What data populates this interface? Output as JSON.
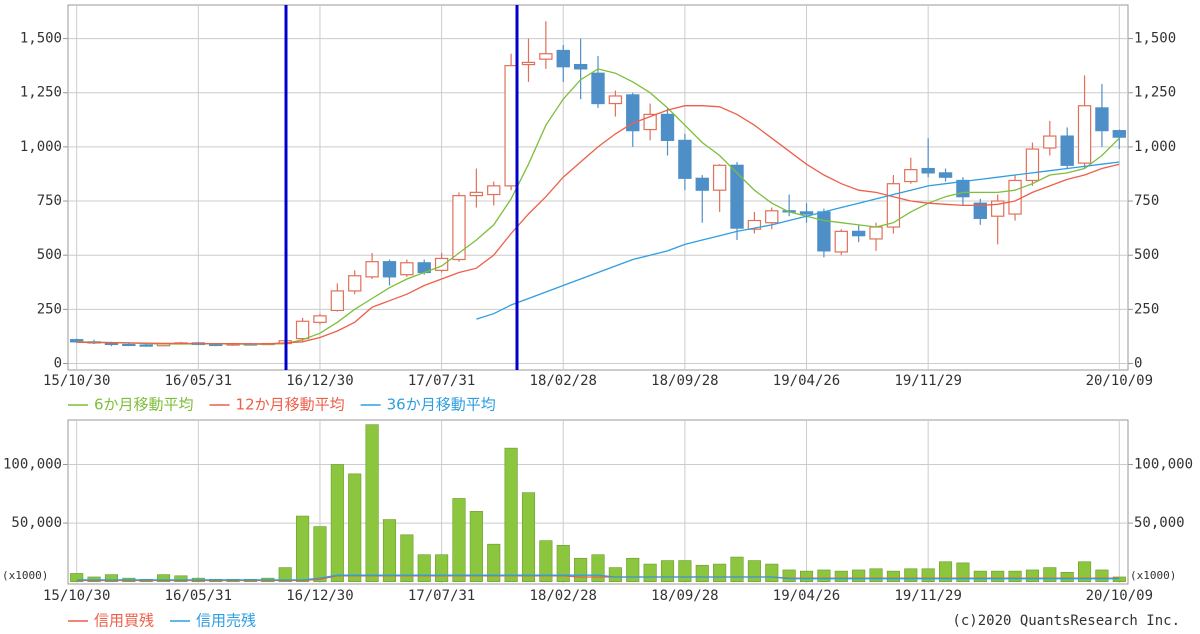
{
  "chart_data": [
    {
      "type": "candlestick",
      "categories": [
        "15/10/30",
        null,
        null,
        null,
        null,
        null,
        null,
        "16/05/31",
        null,
        null,
        null,
        null,
        null,
        null,
        "16/12/30",
        null,
        null,
        null,
        null,
        null,
        null,
        "17/07/31",
        null,
        null,
        null,
        null,
        null,
        null,
        "18/02/28",
        null,
        null,
        null,
        null,
        null,
        null,
        "18/09/28",
        null,
        null,
        null,
        null,
        null,
        null,
        "19/04/26",
        null,
        null,
        null,
        null,
        null,
        null,
        "19/11/29",
        null,
        null,
        null,
        null,
        null,
        null,
        null,
        null,
        null,
        null,
        "20/10/09"
      ],
      "open": [
        110,
        100,
        95,
        88,
        85,
        82,
        92,
        95,
        88,
        85,
        90,
        88,
        92,
        115,
        190,
        245,
        335,
        400,
        470,
        410,
        465,
        430,
        480,
        775,
        780,
        820,
        1380,
        1405,
        1445,
        1380,
        1340,
        1200,
        1240,
        1080,
        1150,
        1030,
        855,
        800,
        915,
        620,
        650,
        705,
        700,
        700,
        515,
        610,
        575,
        630,
        840,
        900,
        880,
        845,
        740,
        680,
        690,
        845,
        995,
        1050,
        925,
        1180,
        1075
      ],
      "high": [
        115,
        110,
        100,
        95,
        92,
        95,
        100,
        100,
        95,
        95,
        95,
        95,
        110,
        210,
        230,
        370,
        430,
        510,
        480,
        480,
        480,
        510,
        790,
        900,
        840,
        1430,
        1500,
        1580,
        1470,
        1500,
        1420,
        1260,
        1250,
        1200,
        1180,
        1060,
        870,
        920,
        930,
        700,
        720,
        780,
        740,
        715,
        620,
        640,
        650,
        870,
        950,
        1040,
        900,
        860,
        760,
        780,
        870,
        1020,
        1120,
        1090,
        1330,
        1290,
        1080
      ],
      "low": [
        95,
        90,
        80,
        80,
        78,
        80,
        88,
        85,
        80,
        82,
        85,
        85,
        85,
        100,
        180,
        240,
        320,
        390,
        360,
        400,
        410,
        420,
        470,
        720,
        730,
        800,
        1300,
        1360,
        1300,
        1220,
        1180,
        1140,
        1000,
        1030,
        960,
        800,
        650,
        700,
        570,
        600,
        620,
        680,
        650,
        490,
        500,
        560,
        520,
        600,
        830,
        860,
        840,
        730,
        640,
        550,
        660,
        820,
        960,
        900,
        900,
        1000,
        990
      ],
      "close": [
        100,
        95,
        88,
        85,
        82,
        92,
        95,
        88,
        85,
        90,
        88,
        92,
        105,
        195,
        220,
        335,
        405,
        470,
        400,
        465,
        420,
        485,
        775,
        790,
        820,
        1375,
        1390,
        1430,
        1370,
        1360,
        1200,
        1235,
        1075,
        1150,
        1030,
        855,
        800,
        915,
        625,
        660,
        705,
        700,
        690,
        520,
        610,
        590,
        630,
        830,
        895,
        880,
        860,
        770,
        670,
        750,
        845,
        990,
        1050,
        915,
        1190,
        1075,
        1045
      ],
      "up_color": "#e0705a",
      "down_color": "#4f8fc8",
      "series": [
        {
          "name": "6か月移動平均",
          "color": "#7cbf3a",
          "values": [
            100,
            99,
            97,
            95,
            92,
            90,
            90,
            91,
            91,
            90,
            89,
            89,
            92,
            110,
            140,
            190,
            250,
            300,
            350,
            390,
            420,
            450,
            510,
            570,
            640,
            760,
            920,
            1100,
            1220,
            1310,
            1360,
            1340,
            1300,
            1250,
            1180,
            1100,
            1020,
            960,
            880,
            800,
            740,
            700,
            680,
            660,
            650,
            640,
            630,
            650,
            700,
            740,
            770,
            790,
            790,
            790,
            800,
            830,
            870,
            880,
            900,
            960,
            1040
          ]
        },
        {
          "name": "12か月移動平均",
          "color": "#ee5f4a",
          "values": [
            98,
            97,
            96,
            95,
            94,
            93,
            93,
            92,
            92,
            92,
            91,
            91,
            95,
            100,
            120,
            150,
            190,
            260,
            290,
            320,
            360,
            390,
            420,
            440,
            500,
            600,
            690,
            770,
            860,
            930,
            1000,
            1060,
            1110,
            1140,
            1170,
            1190,
            1190,
            1185,
            1150,
            1100,
            1040,
            980,
            920,
            870,
            830,
            800,
            790,
            770,
            750,
            740,
            735,
            730,
            730,
            735,
            750,
            790,
            820,
            850,
            870,
            900,
            920
          ]
        },
        {
          "name": "36か月移動平均",
          "color": "#2e9ee0",
          "values": [
            null,
            null,
            null,
            null,
            null,
            null,
            null,
            null,
            null,
            null,
            null,
            null,
            null,
            null,
            null,
            null,
            null,
            null,
            null,
            null,
            null,
            null,
            null,
            205,
            230,
            270,
            300,
            330,
            360,
            390,
            420,
            450,
            480,
            500,
            520,
            550,
            570,
            590,
            610,
            625,
            640,
            660,
            680,
            700,
            720,
            740,
            760,
            780,
            800,
            820,
            830,
            840,
            850,
            860,
            870,
            880,
            890,
            900,
            910,
            920,
            930
          ]
        }
      ],
      "ylim": [
        -30,
        1655
      ],
      "yticks": [
        0,
        250,
        500,
        750,
        {
          "value": 1000,
          "label": "1,000"
        },
        {
          "value": 1250,
          "label": "1,250"
        },
        {
          "value": 1500,
          "label": "1,500"
        }
      ],
      "grid": true
    },
    {
      "type": "bar",
      "categories": [
        "15/10/30",
        null,
        null,
        null,
        null,
        null,
        null,
        "16/05/31",
        null,
        null,
        null,
        null,
        null,
        null,
        "16/12/30",
        null,
        null,
        null,
        null,
        null,
        null,
        "17/07/31",
        null,
        null,
        null,
        null,
        null,
        null,
        "18/02/28",
        null,
        null,
        null,
        null,
        null,
        null,
        "18/09/28",
        null,
        null,
        null,
        null,
        null,
        null,
        "19/04/26",
        null,
        null,
        null,
        null,
        null,
        null,
        "19/11/29",
        null,
        null,
        null,
        null,
        null,
        null,
        null,
        null,
        null,
        null,
        "20/10/09"
      ],
      "values": [
        7000,
        4000,
        6000,
        3000,
        2000,
        6000,
        5000,
        3000,
        2000,
        2000,
        2000,
        3000,
        12000,
        56000,
        47000,
        100000,
        92000,
        134000,
        53000,
        40000,
        23000,
        23000,
        71000,
        60000,
        32000,
        114000,
        76000,
        35000,
        31000,
        20000,
        23000,
        12000,
        20000,
        15000,
        18000,
        18000,
        14000,
        15000,
        21000,
        18000,
        15000,
        10000,
        9000,
        10000,
        9000,
        10000,
        11000,
        9000,
        11000,
        11000,
        17000,
        16000,
        9000,
        9000,
        9000,
        10000,
        12000,
        8000,
        17000,
        10000,
        4000
      ],
      "color": "#8cc63f",
      "series": [
        {
          "name": "信用買残",
          "color": "#ee5f4a",
          "values": [
            1000,
            1000,
            1000,
            1000,
            1000,
            1000,
            1000,
            1000,
            1000,
            1000,
            1000,
            1000,
            1000,
            1000,
            2000,
            5000,
            5000,
            5000,
            5000,
            5000,
            5000,
            5000,
            5000,
            5000,
            5000,
            5000,
            5000,
            5000,
            5000,
            4000,
            4000,
            4000,
            4000,
            4000,
            4000,
            4000,
            4000,
            4000,
            4000,
            4000,
            4000,
            3000,
            3000,
            3000,
            3000,
            3000,
            3000,
            3000,
            3000,
            3000,
            3000,
            3000,
            3000,
            3000,
            3000,
            3000,
            3000,
            3000,
            3000,
            3000,
            3000
          ]
        },
        {
          "name": "信用売残",
          "color": "#2e9ee0",
          "values": [
            1500,
            1500,
            1500,
            1500,
            1500,
            1500,
            1500,
            1500,
            1500,
            1500,
            1500,
            1500,
            1500,
            1500,
            3000,
            5500,
            5500,
            5500,
            5500,
            5500,
            5500,
            5500,
            5500,
            5500,
            5500,
            5500,
            5500,
            5500,
            5500,
            5500,
            5500,
            4000,
            4000,
            4000,
            4000,
            4000,
            4000,
            4000,
            4000,
            4000,
            4000,
            2500,
            2500,
            2500,
            2500,
            2500,
            2500,
            2500,
            2500,
            2500,
            2500,
            2500,
            2500,
            2500,
            2500,
            2500,
            2500,
            2500,
            2500,
            2500,
            2500
          ]
        }
      ],
      "ylim": [
        -2000,
        138000
      ],
      "yticks": [
        {
          "value": 50000,
          "label": "50,000"
        },
        {
          "value": 100000,
          "label": "100,000"
        }
      ],
      "y_unit_label": "(x1000)",
      "grid": true
    }
  ],
  "footer": "(c)2020 QuantsResearch Inc."
}
